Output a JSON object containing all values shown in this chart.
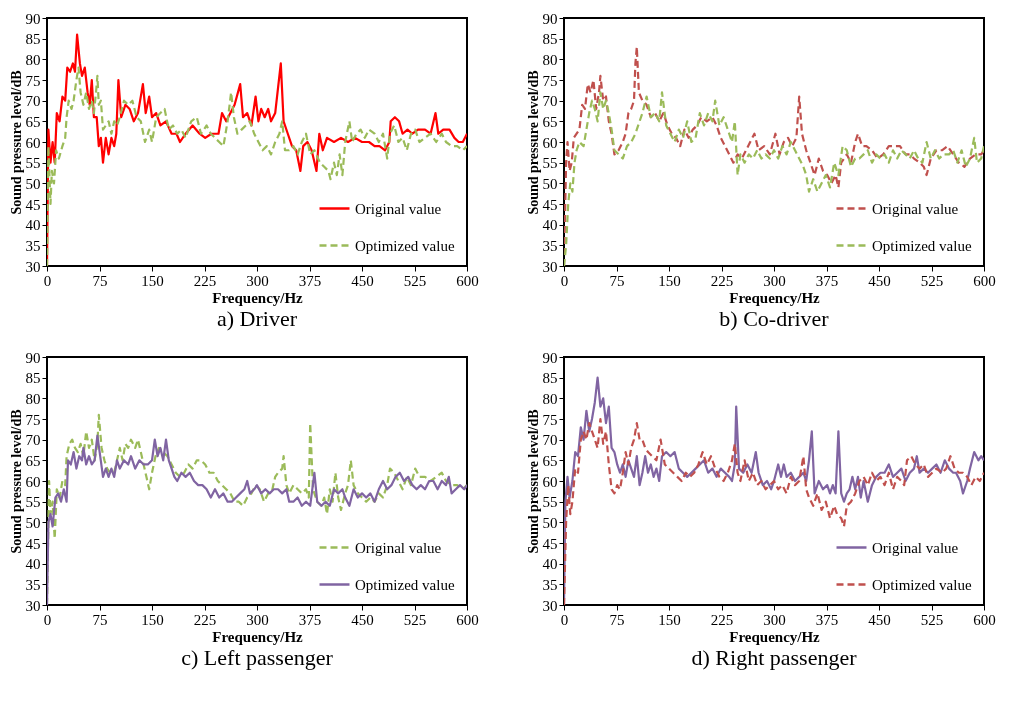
{
  "chart_data": [
    {
      "type": "line",
      "title": "a) Driver",
      "xlabel": "Frequency/Hz",
      "ylabel": "Sound pressure level/dB",
      "xlim": [
        0,
        600
      ],
      "xticks": [
        0,
        75,
        150,
        225,
        300,
        375,
        450,
        525,
        600
      ],
      "ylim": [
        30,
        90
      ],
      "yticks": [
        30,
        35,
        40,
        45,
        50,
        55,
        60,
        65,
        70,
        75,
        80,
        85,
        90
      ],
      "legend": "bottom right",
      "series": [
        {
          "name": "Original value",
          "color": "#ff0000",
          "line_style": "solid",
          "x": [
            0,
            2,
            5,
            8,
            11,
            14,
            18,
            22,
            26,
            29,
            33,
            37,
            40,
            43,
            47,
            50,
            54,
            58,
            61,
            64,
            67,
            71,
            74,
            77,
            80,
            84,
            88,
            92,
            96,
            99,
            102,
            106,
            112,
            118,
            124,
            130,
            137,
            141,
            146,
            150,
            156,
            162,
            170,
            178,
            185,
            190,
            198,
            208,
            218,
            226,
            235,
            245,
            250,
            256,
            262,
            268,
            276,
            280,
            286,
            292,
            298,
            302,
            306,
            311,
            316,
            320,
            326,
            334,
            338,
            344,
            350,
            356,
            362,
            366,
            372,
            378,
            385,
            389,
            394,
            400,
            410,
            420,
            430,
            440,
            450,
            460,
            468,
            475,
            483,
            489,
            491,
            497,
            503,
            508,
            515,
            522,
            530,
            540,
            548,
            555,
            559,
            566,
            575,
            582,
            588,
            594,
            600
          ],
          "values": [
            30,
            63,
            55,
            60,
            55,
            67,
            65,
            71,
            70,
            78,
            77,
            79,
            77,
            86,
            79,
            76,
            78,
            72,
            69,
            75,
            66,
            66,
            59,
            61,
            55,
            61,
            57,
            61,
            59,
            62,
            75,
            66,
            69,
            68,
            65,
            67,
            74,
            67,
            71,
            66,
            67,
            64,
            65,
            62,
            62,
            60,
            62,
            64,
            62,
            61,
            62,
            62,
            67,
            65,
            67,
            69,
            74,
            66,
            67,
            64,
            71,
            65,
            68,
            66,
            68,
            65,
            67,
            79,
            65,
            62,
            59,
            58,
            53,
            59,
            60,
            58,
            53,
            62,
            58,
            61,
            60,
            61,
            60,
            61,
            60,
            60,
            59,
            59,
            58,
            60,
            65,
            66,
            65,
            62,
            63,
            62,
            63,
            63,
            62,
            67,
            62,
            63,
            63,
            61,
            60,
            60,
            62
          ]
        },
        {
          "name": "Optimized value",
          "color": "#9bbb59",
          "line_style": "dashed",
          "x": [
            0,
            2,
            5,
            7,
            10,
            13,
            17,
            22,
            26,
            28,
            31,
            35,
            38,
            42,
            45,
            48,
            52,
            56,
            60,
            64,
            67,
            70,
            72,
            74,
            77,
            80,
            84,
            88,
            92,
            96,
            100,
            104,
            110,
            116,
            122,
            128,
            134,
            140,
            146,
            150,
            156,
            162,
            168,
            174,
            180,
            186,
            192,
            198,
            206,
            214,
            220,
            228,
            234,
            240,
            246,
            252,
            258,
            263,
            267,
            272,
            278,
            284,
            290,
            296,
            302,
            308,
            314,
            320,
            326,
            332,
            336,
            340,
            346,
            352,
            358,
            364,
            370,
            376,
            382,
            390,
            396,
            402,
            405,
            410,
            414,
            418,
            422,
            426,
            432,
            436,
            442,
            448,
            454,
            460,
            468,
            474,
            480,
            486,
            490,
            496,
            502,
            508,
            514,
            520,
            526,
            532,
            540,
            548,
            556,
            564,
            570,
            578,
            586,
            594,
            600
          ],
          "values": [
            30,
            59,
            45,
            53,
            50,
            58,
            56,
            59,
            61,
            66,
            70,
            68,
            70,
            75,
            78,
            72,
            69,
            72,
            68,
            70,
            67,
            72,
            76,
            69,
            70,
            63,
            64,
            65,
            62,
            65,
            64,
            66,
            70,
            69,
            70,
            66,
            65,
            60,
            63,
            60,
            66,
            67,
            68,
            63,
            64,
            62,
            63,
            61,
            65,
            66,
            62,
            64,
            62,
            61,
            60,
            59,
            65,
            72,
            66,
            62,
            63,
            64,
            65,
            62,
            60,
            58,
            59,
            57,
            60,
            62,
            65,
            58,
            58,
            59,
            57,
            60,
            62,
            57,
            58,
            55,
            54,
            53,
            51,
            55,
            52,
            57,
            52,
            60,
            65,
            60,
            62,
            63,
            61,
            63,
            62,
            60,
            62,
            56,
            62,
            64,
            60,
            61,
            58,
            62,
            63,
            60,
            61,
            62,
            60,
            62,
            60,
            59,
            59,
            58,
            59
          ]
        }
      ]
    },
    {
      "type": "line",
      "title": "b) Co-driver",
      "xlabel": "Frequency/Hz",
      "ylabel": "Sound pressure level/dB",
      "xlim": [
        0,
        600
      ],
      "xticks": [
        0,
        75,
        150,
        225,
        300,
        375,
        450,
        525,
        600
      ],
      "ylim": [
        30,
        90
      ],
      "yticks": [
        30,
        35,
        40,
        45,
        50,
        55,
        60,
        65,
        70,
        75,
        80,
        85,
        90
      ],
      "legend": "bottom right",
      "series": [
        {
          "name": "Original value",
          "color": "#c0504d",
          "line_style": "dashed",
          "x": [
            0,
            3,
            5,
            8,
            11,
            14,
            18,
            22,
            26,
            30,
            34,
            38,
            42,
            46,
            50,
            52,
            56,
            60,
            64,
            68,
            72,
            78,
            84,
            88,
            92,
            96,
            100,
            102,
            104,
            107,
            112,
            118,
            124,
            130,
            136,
            142,
            148,
            154,
            160,
            166,
            172,
            178,
            184,
            190,
            196,
            204,
            212,
            218,
            224,
            230,
            236,
            242,
            248,
            254,
            260,
            266,
            272,
            278,
            286,
            294,
            302,
            308,
            314,
            320,
            326,
            332,
            336,
            340,
            346,
            352,
            358,
            364,
            370,
            376,
            382,
            388,
            392,
            396,
            404,
            410,
            416,
            420,
            426,
            432,
            440,
            448,
            456,
            464,
            472,
            480,
            488,
            494,
            500,
            508,
            514,
            518,
            524,
            532,
            540,
            548,
            556,
            564,
            572,
            580,
            588,
            596,
            600
          ],
          "values": [
            30,
            55,
            60,
            53,
            55,
            61,
            62,
            63,
            69,
            68,
            74,
            72,
            75,
            68,
            72,
            76,
            70,
            71,
            65,
            62,
            57,
            58,
            60,
            62,
            67,
            68,
            70,
            79,
            83,
            72,
            70,
            69,
            66,
            67,
            65,
            67,
            64,
            62,
            61,
            59,
            63,
            61,
            63,
            64,
            66,
            65,
            66,
            64,
            61,
            59,
            57,
            55,
            57,
            56,
            58,
            60,
            62,
            58,
            59,
            57,
            62,
            57,
            60,
            61,
            59,
            61,
            71,
            62,
            58,
            55,
            52,
            56,
            53,
            52,
            50,
            52,
            49,
            55,
            57,
            55,
            60,
            62,
            59,
            59,
            58,
            56,
            57,
            59,
            59,
            59,
            57,
            57,
            56,
            55,
            54,
            52,
            56,
            58,
            58,
            59,
            57,
            55,
            54,
            56,
            57,
            57,
            58
          ]
        },
        {
          "name": "Optimized value",
          "color": "#9bbb59",
          "line_style": "dashed",
          "x": [
            0,
            3,
            6,
            9,
            12,
            15,
            18,
            22,
            28,
            32,
            36,
            40,
            44,
            48,
            52,
            56,
            60,
            64,
            68,
            72,
            78,
            84,
            90,
            96,
            102,
            106,
            112,
            118,
            124,
            130,
            136,
            140,
            146,
            152,
            158,
            164,
            170,
            176,
            182,
            188,
            194,
            200,
            206,
            212,
            216,
            222,
            228,
            234,
            240,
            244,
            248,
            252,
            258,
            264,
            270,
            276,
            282,
            288,
            294,
            300,
            306,
            312,
            318,
            324,
            330,
            336,
            342,
            346,
            350,
            356,
            362,
            368,
            374,
            380,
            386,
            392,
            398,
            404,
            410,
            416,
            422,
            428,
            434,
            440,
            446,
            452,
            458,
            464,
            470,
            476,
            482,
            488,
            494,
            500,
            506,
            512,
            518,
            524,
            530,
            536,
            542,
            550,
            556,
            562,
            568,
            574,
            580,
            586,
            590,
            596,
            600
          ],
          "values": [
            30,
            35,
            45,
            50,
            48,
            55,
            58,
            60,
            59,
            63,
            67,
            70,
            68,
            65,
            72,
            68,
            70,
            67,
            63,
            58,
            57,
            56,
            59,
            60,
            62,
            64,
            67,
            71,
            66,
            67,
            65,
            72,
            64,
            62,
            60,
            63,
            61,
            65,
            60,
            61,
            67,
            64,
            67,
            65,
            70,
            64,
            66,
            63,
            60,
            65,
            52,
            57,
            55,
            57,
            56,
            58,
            56,
            57,
            56,
            58,
            56,
            59,
            57,
            60,
            58,
            56,
            54,
            52,
            48,
            51,
            48,
            50,
            52,
            49,
            55,
            52,
            59,
            58,
            54,
            56,
            56,
            57,
            58,
            55,
            57,
            56,
            57,
            55,
            58,
            56,
            58,
            57,
            56,
            58,
            56,
            55,
            60,
            56,
            58,
            56,
            57,
            57,
            58,
            55,
            58,
            54,
            56,
            61,
            55,
            56,
            59
          ]
        }
      ]
    },
    {
      "type": "line",
      "title": "c) Left passenger",
      "xlabel": "Frequency/Hz",
      "ylabel": "Sound pressure level/dB",
      "xlim": [
        0,
        600
      ],
      "xticks": [
        0,
        75,
        150,
        225,
        300,
        375,
        450,
        525,
        600
      ],
      "ylim": [
        30,
        90
      ],
      "yticks": [
        30,
        35,
        40,
        45,
        50,
        55,
        60,
        65,
        70,
        75,
        80,
        85,
        90
      ],
      "legend": "bottom right",
      "series": [
        {
          "name": "Original value",
          "color": "#9bbb59",
          "line_style": "dashed",
          "x": [
            0,
            3,
            5,
            8,
            11,
            14,
            18,
            22,
            26,
            28,
            32,
            36,
            40,
            44,
            48,
            52,
            56,
            60,
            64,
            68,
            72,
            74,
            78,
            82,
            86,
            90,
            96,
            100,
            104,
            108,
            112,
            116,
            120,
            126,
            130,
            134,
            138,
            142,
            146,
            150,
            155,
            160,
            166,
            172,
            178,
            184,
            190,
            196,
            202,
            208,
            214,
            220,
            226,
            232,
            238,
            244,
            250,
            256,
            262,
            268,
            274,
            280,
            286,
            292,
            298,
            304,
            310,
            316,
            322,
            326,
            330,
            336,
            338,
            342,
            346,
            352,
            358,
            364,
            370,
            374,
            376,
            380,
            386,
            392,
            396,
            400,
            404,
            408,
            412,
            416,
            420,
            426,
            430,
            434,
            438,
            444,
            450,
            456,
            462,
            468,
            474,
            480,
            486,
            490,
            496,
            502,
            508,
            514,
            520,
            526,
            532,
            540,
            548,
            556,
            564,
            570,
            578,
            586,
            594,
            600
          ],
          "values": [
            30,
            60,
            52,
            55,
            46,
            58,
            56,
            60,
            59,
            66,
            69,
            70,
            68,
            67,
            69,
            66,
            72,
            68,
            70,
            65,
            69,
            76,
            68,
            65,
            63,
            62,
            62,
            65,
            68,
            65,
            69,
            68,
            70,
            68,
            70,
            67,
            64,
            61,
            58,
            62,
            66,
            68,
            67,
            66,
            64,
            62,
            61,
            62,
            64,
            63,
            65,
            65,
            64,
            62,
            62,
            60,
            59,
            58,
            57,
            55,
            55,
            54,
            56,
            57,
            59,
            58,
            55,
            57,
            58,
            61,
            62,
            63,
            66,
            59,
            57,
            59,
            58,
            57,
            58,
            56,
            74,
            58,
            55,
            54,
            56,
            52,
            58,
            55,
            62,
            56,
            53,
            57,
            59,
            65,
            59,
            57,
            56,
            55,
            56,
            55,
            57,
            56,
            59,
            63,
            62,
            60,
            58,
            61,
            59,
            63,
            61,
            61,
            60,
            61,
            62,
            60,
            59,
            59,
            58,
            59
          ]
        },
        {
          "name": "Optimized value",
          "color": "#8064a2",
          "line_style": "solid",
          "x": [
            0,
            2,
            5,
            8,
            12,
            16,
            20,
            24,
            28,
            30,
            34,
            38,
            42,
            46,
            50,
            52,
            56,
            60,
            64,
            68,
            72,
            76,
            80,
            84,
            88,
            92,
            96,
            100,
            104,
            110,
            116,
            120,
            126,
            132,
            138,
            144,
            150,
            154,
            158,
            162,
            166,
            170,
            174,
            178,
            182,
            186,
            192,
            198,
            204,
            210,
            216,
            222,
            228,
            234,
            240,
            246,
            252,
            258,
            264,
            270,
            276,
            282,
            286,
            290,
            296,
            300,
            306,
            312,
            318,
            324,
            330,
            336,
            342,
            346,
            352,
            358,
            364,
            370,
            376,
            382,
            386,
            392,
            398,
            404,
            410,
            416,
            422,
            426,
            432,
            438,
            444,
            450,
            456,
            462,
            468,
            474,
            480,
            486,
            492,
            498,
            504,
            510,
            516,
            522,
            528,
            534,
            540,
            546,
            552,
            558,
            564,
            570,
            574,
            578,
            584,
            590,
            596,
            600
          ],
          "values": [
            30,
            50,
            52,
            49,
            56,
            57,
            55,
            58,
            55,
            65,
            64,
            67,
            63,
            66,
            65,
            68,
            64,
            66,
            64,
            65,
            71,
            66,
            61,
            63,
            61,
            63,
            61,
            65,
            63,
            65,
            64,
            66,
            63,
            65,
            64,
            64,
            65,
            70,
            66,
            68,
            65,
            70,
            65,
            63,
            61,
            60,
            62,
            61,
            62,
            60,
            59,
            59,
            58,
            56,
            58,
            56,
            57,
            55,
            55,
            56,
            57,
            58,
            60,
            57,
            58,
            59,
            57,
            58,
            57,
            58,
            58,
            57,
            58,
            55,
            55,
            56,
            54,
            55,
            54,
            62,
            55,
            54,
            55,
            54,
            58,
            57,
            58,
            56,
            54,
            58,
            56,
            57,
            56,
            57,
            55,
            58,
            60,
            58,
            59,
            61,
            62,
            60,
            61,
            59,
            58,
            59,
            58,
            60,
            60,
            58,
            60,
            59,
            61,
            57,
            58,
            59,
            58,
            59
          ]
        }
      ]
    },
    {
      "type": "line",
      "title": "d) Right passenger",
      "xlabel": "Frequency/Hz",
      "ylabel": "Sound pressure level/dB",
      "xlim": [
        0,
        600
      ],
      "xticks": [
        0,
        75,
        150,
        225,
        300,
        375,
        450,
        525,
        600
      ],
      "ylim": [
        30,
        90
      ],
      "yticks": [
        30,
        35,
        40,
        45,
        50,
        55,
        60,
        65,
        70,
        75,
        80,
        85,
        90
      ],
      "legend": "bottom right",
      "series": [
        {
          "name": "Original value",
          "color": "#8064a2",
          "line_style": "solid",
          "x": [
            0,
            2,
            5,
            8,
            12,
            16,
            20,
            24,
            28,
            32,
            36,
            40,
            44,
            48,
            52,
            56,
            60,
            64,
            68,
            72,
            76,
            80,
            84,
            88,
            92,
            96,
            100,
            104,
            108,
            112,
            116,
            120,
            124,
            128,
            132,
            136,
            140,
            146,
            152,
            158,
            164,
            170,
            176,
            182,
            188,
            194,
            200,
            206,
            212,
            218,
            224,
            230,
            236,
            240,
            244,
            246,
            250,
            256,
            262,
            268,
            274,
            278,
            284,
            290,
            296,
            300,
            306,
            310,
            314,
            318,
            324,
            330,
            336,
            342,
            346,
            350,
            354,
            358,
            364,
            370,
            376,
            380,
            384,
            388,
            392,
            396,
            400,
            404,
            408,
            412,
            416,
            420,
            424,
            428,
            434,
            440,
            446,
            452,
            458,
            464,
            470,
            476,
            482,
            488,
            494,
            500,
            504,
            508,
            514,
            520,
            526,
            532,
            538,
            544,
            550,
            556,
            560,
            566,
            570,
            576,
            580,
            586,
            592,
            596,
            600
          ],
          "values": [
            30,
            55,
            61,
            56,
            60,
            67,
            66,
            73,
            70,
            77,
            72,
            75,
            79,
            85,
            78,
            80,
            74,
            78,
            68,
            67,
            64,
            62,
            64,
            61,
            65,
            63,
            61,
            66,
            59,
            62,
            66,
            62,
            64,
            61,
            63,
            60,
            66,
            67,
            66,
            67,
            63,
            62,
            61,
            62,
            63,
            64,
            65,
            62,
            63,
            61,
            63,
            62,
            61,
            60,
            64,
            78,
            63,
            62,
            64,
            62,
            67,
            62,
            59,
            60,
            58,
            60,
            64,
            61,
            64,
            61,
            62,
            60,
            61,
            62,
            60,
            65,
            72,
            57,
            60,
            58,
            59,
            57,
            59,
            57,
            72,
            57,
            55,
            57,
            58,
            61,
            58,
            61,
            56,
            60,
            55,
            59,
            61,
            62,
            62,
            64,
            61,
            62,
            63,
            60,
            62,
            63,
            66,
            62,
            63,
            62,
            63,
            64,
            62,
            65,
            63,
            62,
            62,
            60,
            57,
            60,
            63,
            67,
            65,
            66,
            65
          ]
        },
        {
          "name": "Optimized value",
          "color": "#c0504d",
          "line_style": "dashed",
          "x": [
            0,
            3,
            6,
            9,
            12,
            16,
            20,
            24,
            28,
            32,
            36,
            40,
            44,
            48,
            52,
            56,
            60,
            64,
            68,
            72,
            76,
            80,
            84,
            88,
            92,
            96,
            100,
            104,
            108,
            112,
            116,
            120,
            126,
            132,
            138,
            144,
            150,
            156,
            162,
            168,
            174,
            180,
            186,
            192,
            198,
            204,
            210,
            216,
            222,
            228,
            234,
            240,
            244,
            248,
            252,
            258,
            264,
            270,
            276,
            282,
            288,
            294,
            300,
            306,
            312,
            318,
            324,
            330,
            336,
            342,
            346,
            350,
            356,
            362,
            368,
            374,
            380,
            386,
            390,
            396,
            400,
            404,
            410,
            416,
            422,
            428,
            434,
            440,
            446,
            452,
            458,
            464,
            470,
            476,
            482,
            486,
            490,
            496,
            502,
            508,
            514,
            520,
            526,
            532,
            540,
            546,
            552,
            558,
            564,
            570,
            576,
            582,
            588,
            594,
            600
          ],
          "values": [
            30,
            50,
            59,
            52,
            55,
            63,
            62,
            70,
            72,
            70,
            74,
            72,
            70,
            68,
            75,
            69,
            72,
            64,
            58,
            57,
            59,
            58,
            62,
            67,
            64,
            68,
            70,
            74,
            70,
            70,
            68,
            67,
            66,
            65,
            70,
            64,
            63,
            62,
            61,
            60,
            62,
            61,
            62,
            64,
            67,
            64,
            66,
            63,
            61,
            60,
            62,
            65,
            69,
            62,
            60,
            65,
            60,
            62,
            59,
            60,
            58,
            59,
            60,
            58,
            59,
            57,
            61,
            59,
            60,
            66,
            58,
            56,
            54,
            57,
            53,
            55,
            51,
            54,
            52,
            51,
            49,
            54,
            55,
            57,
            60,
            61,
            59,
            62,
            60,
            61,
            59,
            62,
            58,
            61,
            60,
            59,
            65,
            66,
            64,
            63,
            64,
            61,
            62,
            63,
            62,
            63,
            66,
            63,
            62,
            62,
            61,
            59,
            61,
            60,
            62
          ]
        }
      ]
    }
  ]
}
